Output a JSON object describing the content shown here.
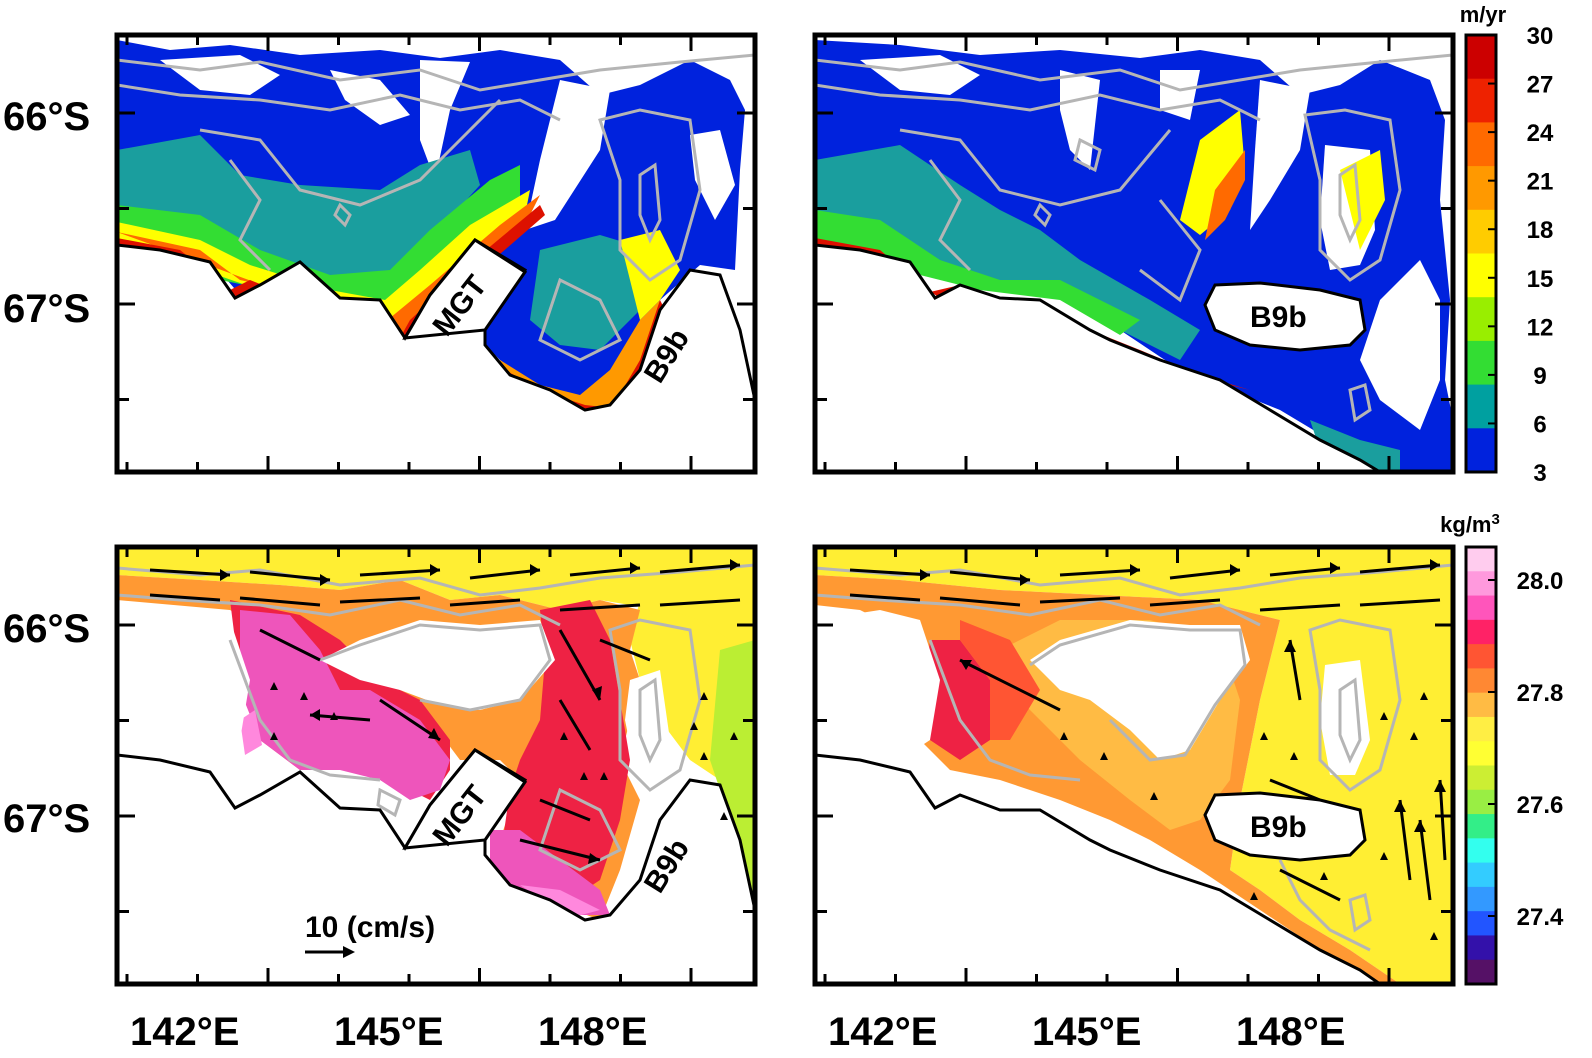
{
  "axes": {
    "lat_labels": [
      "66°S",
      "67°S"
    ],
    "lon_labels": [
      "142°E",
      "145°E",
      "148°E"
    ]
  },
  "colorbars": {
    "top": {
      "unit": "m/yr",
      "ticks": [
        "30",
        "27",
        "24",
        "21",
        "18",
        "15",
        "12",
        "9",
        "6",
        "3"
      ],
      "colors": [
        "#cc0000",
        "#ee2200",
        "#ff6a00",
        "#ff9900",
        "#ffcc00",
        "#ffff00",
        "#99ee00",
        "#33dd33",
        "#00a0a0",
        "#0022dd"
      ]
    },
    "bottom": {
      "unit": "kg/m",
      "unit_sup": "3",
      "ticks": [
        "28.0",
        "27.8",
        "27.6",
        "27.4"
      ],
      "colors": [
        "#ffccee",
        "#ff99dd",
        "#ff55bb",
        "#ff2266",
        "#ff5533",
        "#ff8833",
        "#ffbb44",
        "#ffee44",
        "#ffff33",
        "#ccee33",
        "#99ee44",
        "#33ee88",
        "#33ffee",
        "#33ccff",
        "#3399ff",
        "#2255ff",
        "#3311aa",
        "#551166"
      ]
    }
  },
  "features": {
    "mgt": "MGT",
    "b9b": "B9b"
  },
  "vector_scale": {
    "label": "10 (cm/s)"
  },
  "panel_colors": {
    "ice_free_blue": "#0022dd",
    "teal": "#1a9e9e",
    "bathy_contour": "#b5b5b5",
    "density_yellow": "#ffee33",
    "density_pink": "#ee55bb",
    "density_red": "#ee2244",
    "density_orange": "#ff9933"
  }
}
